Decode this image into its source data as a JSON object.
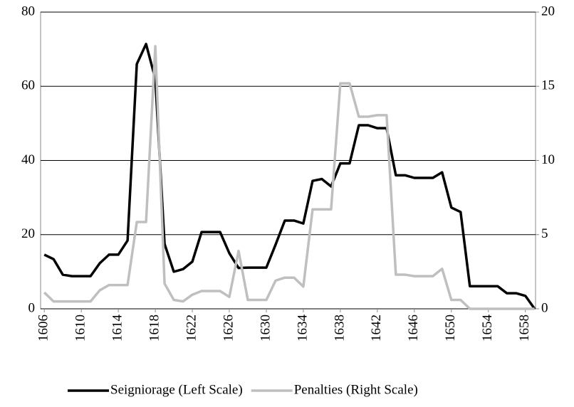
{
  "chart_data": {
    "type": "line",
    "x": [
      1606,
      1607,
      1608,
      1609,
      1610,
      1611,
      1612,
      1613,
      1614,
      1615,
      1616,
      1617,
      1618,
      1619,
      1620,
      1621,
      1622,
      1623,
      1624,
      1625,
      1626,
      1627,
      1628,
      1629,
      1630,
      1631,
      1632,
      1633,
      1634,
      1635,
      1636,
      1637,
      1638,
      1639,
      1640,
      1641,
      1642,
      1643,
      1644,
      1645,
      1646,
      1647,
      1648,
      1649,
      1650,
      1651,
      1652,
      1653,
      1654,
      1655,
      1656,
      1657,
      1658,
      1659
    ],
    "series": [
      {
        "name": "Seigniorage (Left Scale)",
        "color": "#000000",
        "axis": "y",
        "values": [
          14.6,
          13.4,
          9.2,
          8.8,
          8.8,
          8.8,
          12.3,
          14.6,
          14.6,
          18.4,
          66,
          71.4,
          62,
          17.5,
          10,
          10.7,
          12.7,
          20.7,
          20.7,
          20.7,
          15,
          11,
          11.1,
          11.1,
          11.1,
          17.3,
          23.8,
          23.8,
          23,
          34.5,
          35,
          33,
          39.2,
          39.2,
          49.5,
          49.5,
          48.7,
          48.7,
          36,
          36,
          35.3,
          35.3,
          35.3,
          36.8,
          27.3,
          26.1,
          6.1,
          6.1,
          6.1,
          6.1,
          4.2,
          4.2,
          3.5,
          0
        ]
      },
      {
        "name": "Penalties (Right Scale)",
        "color": "#bfbfbf",
        "axis": "y2",
        "values": [
          1.1,
          0.5,
          0.5,
          0.5,
          0.5,
          0.5,
          1.25,
          1.6,
          1.6,
          1.6,
          5.85,
          5.85,
          17.7,
          1.7,
          0.6,
          0.5,
          0.95,
          1.2,
          1.2,
          1.2,
          0.8,
          3.9,
          0.6,
          0.6,
          0.6,
          1.9,
          2.1,
          2.1,
          1.5,
          6.7,
          6.7,
          6.7,
          15.2,
          15.2,
          12.95,
          12.95,
          13.05,
          13.05,
          2.3,
          2.3,
          2.2,
          2.2,
          2.2,
          2.7,
          0.6,
          0.6,
          0,
          0,
          0,
          0,
          0,
          0,
          0,
          0
        ]
      }
    ],
    "xlim": [
      1605.6,
      1659.1
    ],
    "xticks": [
      1606,
      1610,
      1614,
      1618,
      1622,
      1626,
      1630,
      1634,
      1638,
      1642,
      1646,
      1650,
      1654,
      1658
    ],
    "ylim": [
      0,
      80
    ],
    "yticks": [
      0,
      20,
      40,
      60,
      80
    ],
    "y2lim": [
      0,
      20
    ],
    "y2ticks": [
      0,
      5,
      10,
      15,
      20
    ],
    "grid": true,
    "legend": "bottom"
  }
}
